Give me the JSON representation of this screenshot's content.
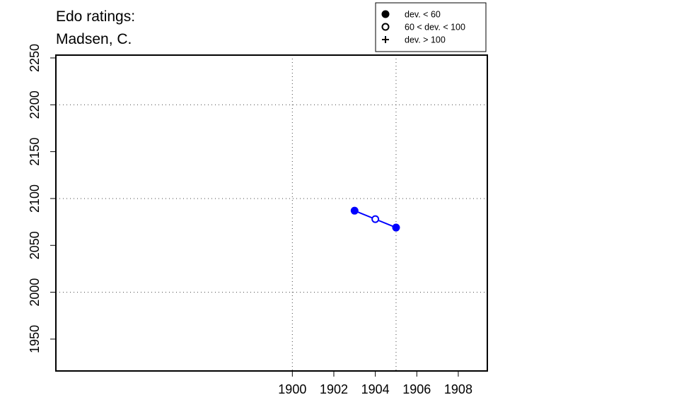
{
  "chart_data": {
    "type": "line",
    "title_lines": [
      "Edo ratings:",
      "Madsen, C."
    ],
    "xlabel": "",
    "ylabel": "",
    "xlim": [
      1888.6,
      1909.4
    ],
    "ylim": [
      1916,
      2253
    ],
    "x_ticks": [
      1900,
      1902,
      1904,
      1906,
      1908
    ],
    "y_ticks": [
      1950,
      2000,
      2050,
      2100,
      2150,
      2200,
      2250
    ],
    "x_grid": [
      1900,
      1905
    ],
    "y_grid": [
      2000,
      2100,
      2200
    ],
    "grid": "dotted",
    "series": [
      {
        "color": "#0000ff",
        "points": [
          {
            "x": 1903,
            "y": 2087,
            "marker": "filled"
          },
          {
            "x": 1904,
            "y": 2078,
            "marker": "open"
          },
          {
            "x": 1905,
            "y": 2069,
            "marker": "filled"
          }
        ]
      }
    ],
    "legend": {
      "placement": "top-right",
      "entries": [
        {
          "label": "dev. < 60",
          "marker": "filled"
        },
        {
          "label": "60 < dev. < 100",
          "marker": "open"
        },
        {
          "label": "dev. > 100",
          "marker": "plus"
        }
      ]
    }
  }
}
